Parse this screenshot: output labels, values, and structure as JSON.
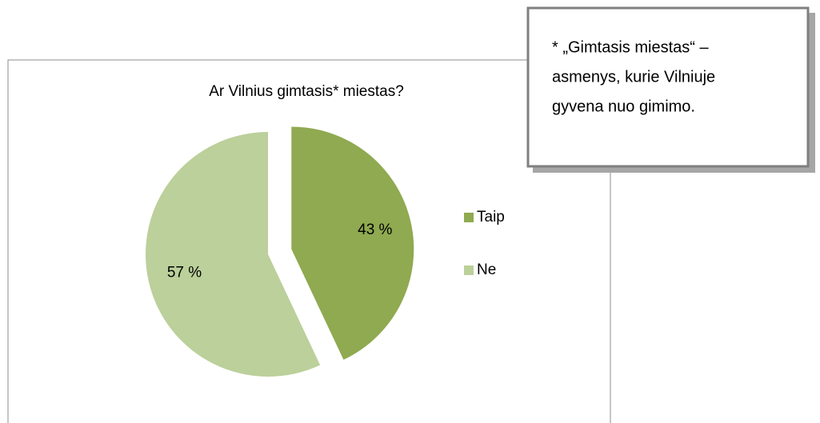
{
  "chart_data": {
    "type": "pie",
    "title": "Ar Vilnius gimtasis* miestas?",
    "categories": [
      "Taip",
      "Ne"
    ],
    "values": [
      43,
      57
    ],
    "value_labels": [
      "43 %",
      "57 %"
    ],
    "colors": [
      "#8faa50",
      "#bbd09a"
    ],
    "legend": "right",
    "annotation": [
      "* „Gimtasis miestas“ –",
      "asmenys, kurie Vilniuje",
      "gyvena nuo gimimo."
    ]
  }
}
